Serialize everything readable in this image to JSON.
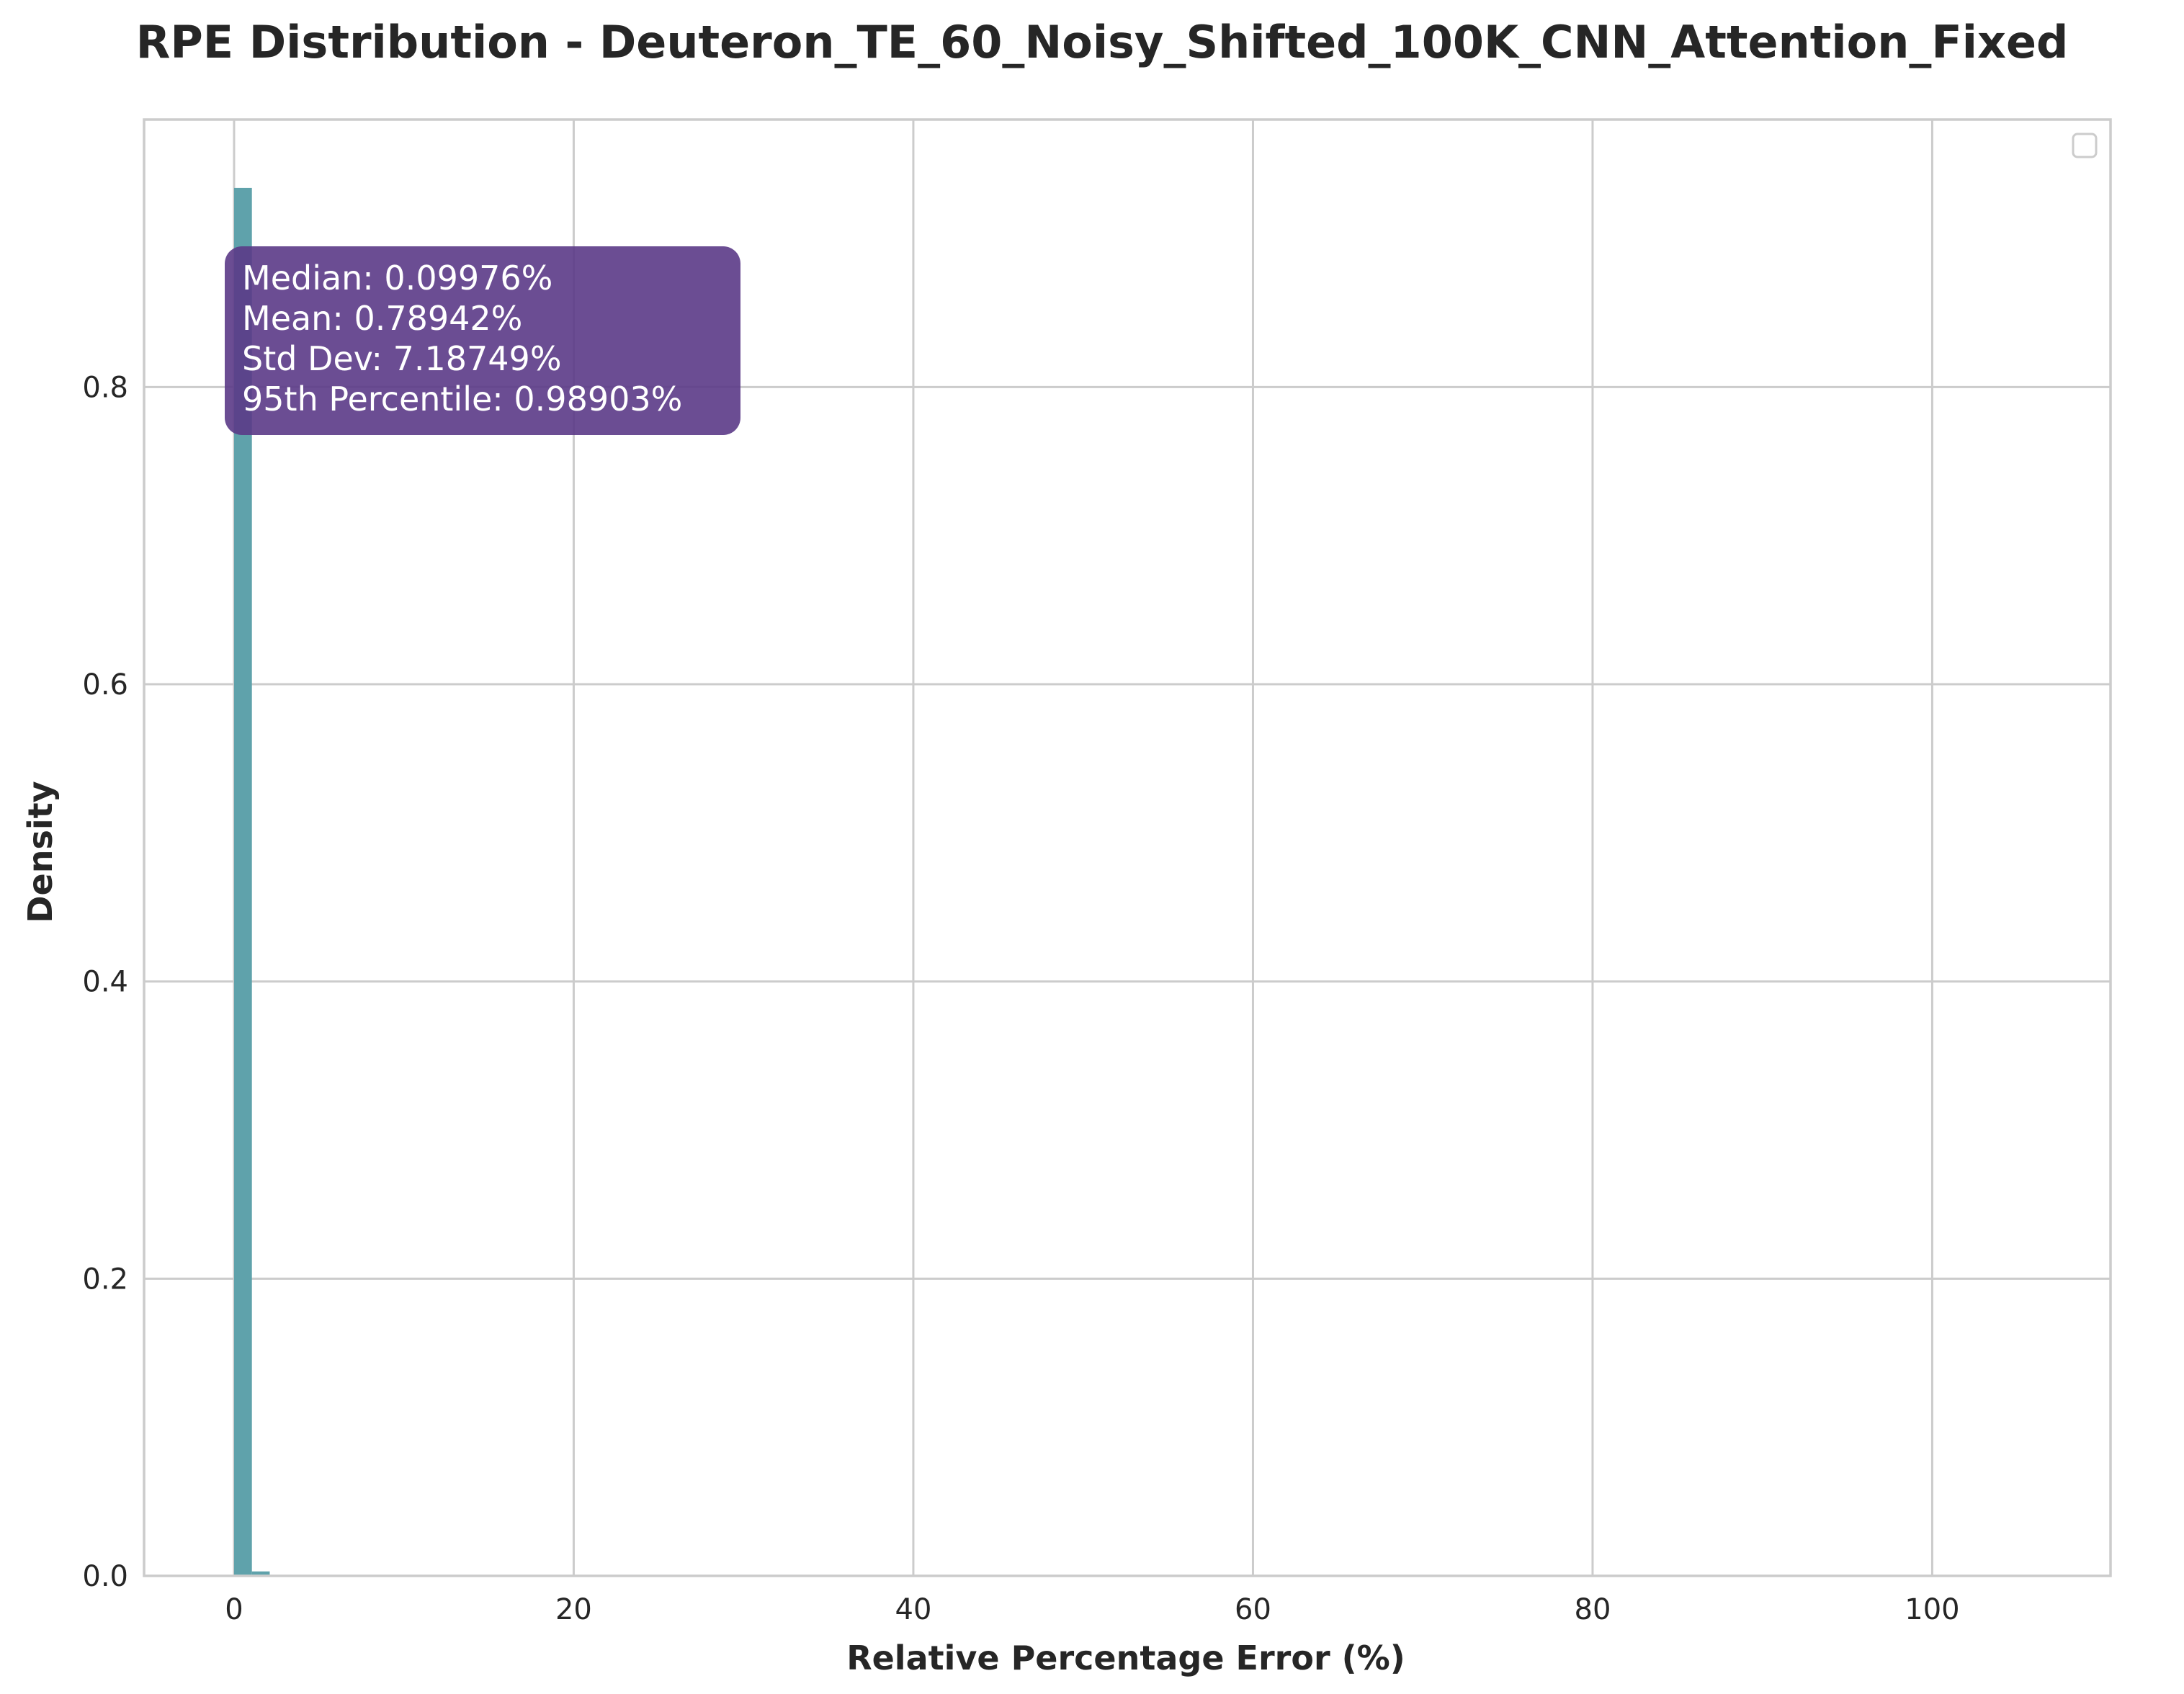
{
  "chart_data": {
    "type": "bar",
    "title": "RPE Distribution - Deuteron_TE_60_Noisy_Shifted_100K_CNN_Attention_Fixed",
    "xlabel": "Relative Percentage Error (%)",
    "ylabel": "Density",
    "xlim": [
      -5.3,
      110.5
    ],
    "ylim": [
      0,
      0.98
    ],
    "xticks": [
      0,
      20,
      40,
      60,
      80,
      100
    ],
    "xtick_labels": [
      "0",
      "20",
      "40",
      "60",
      "80",
      "100"
    ],
    "yticks": [
      0.0,
      0.2,
      0.4,
      0.6,
      0.8
    ],
    "ytick_labels": [
      "0.0",
      "0.2",
      "0.4",
      "0.6",
      "0.8"
    ],
    "grid": true,
    "legend": "top-right, empty",
    "bars": [
      {
        "x0": 0.0,
        "x1": 1.05,
        "value": 0.934
      },
      {
        "x0": 1.05,
        "x1": 2.1,
        "value": 0.003
      }
    ],
    "bar_color": "#5fa2ab",
    "stats_box": {
      "lines": [
        "Median: 0.09976%",
        "Mean: 0.78942%",
        "Std Dev: 7.18749%",
        "95th Percentile: 0.98903%"
      ],
      "background": "#5b3a87",
      "text_color": "#ffffff"
    }
  }
}
